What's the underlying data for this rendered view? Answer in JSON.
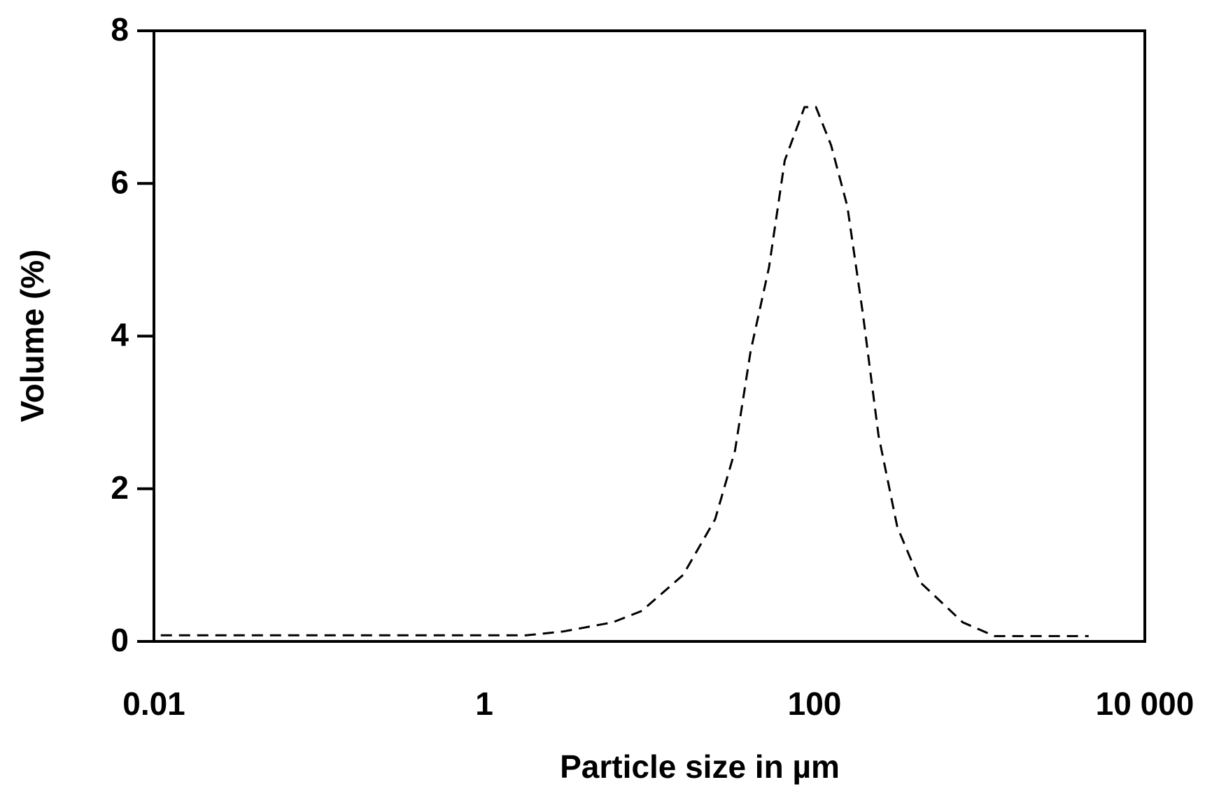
{
  "chart_data": {
    "type": "line",
    "x_label": "Particle size in µm",
    "y_label": "Volume (%)",
    "xscale": "log",
    "xlim": [
      0.01,
      10000
    ],
    "xticks": [
      0.01,
      1,
      100,
      {
        "value": 10000,
        "label": "10 000"
      }
    ],
    "ylim": [
      0,
      8
    ],
    "yticks": [
      0,
      2,
      4,
      6,
      8
    ],
    "grid": false,
    "x": [
      0.011,
      0.1,
      1,
      1.8,
      3,
      6,
      9,
      16,
      25,
      33,
      41,
      53,
      66,
      87,
      102,
      126,
      158,
      196,
      244,
      317,
      439,
      790,
      1230,
      4570
    ],
    "series": [
      {
        "color": "#000000",
        "values": [
          0.08,
          0.08,
          0.08,
          0.08,
          0.13,
          0.25,
          0.4,
          0.87,
          1.6,
          2.5,
          3.8,
          4.9,
          6.3,
          7.0,
          7.0,
          6.5,
          5.7,
          4.3,
          2.7,
          1.5,
          0.77,
          0.25,
          0.07,
          0.07
        ]
      }
    ]
  }
}
